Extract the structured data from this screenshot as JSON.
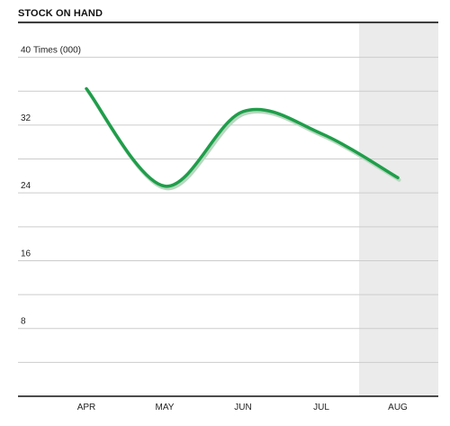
{
  "title": "STOCK ON HAND",
  "chart_data": {
    "type": "line",
    "title": "STOCK ON HAND",
    "ylabel": "Times (000)",
    "xlabel": "",
    "categories": [
      "APR",
      "MAY",
      "JUN",
      "JUL",
      "AUG"
    ],
    "series": [
      {
        "values": [
          36.3,
          24.8,
          33.6,
          31.0,
          25.8
        ]
      }
    ],
    "ylim": [
      0,
      44
    ],
    "yticks": [
      8,
      16,
      24,
      32,
      40
    ],
    "ytick_labels": [
      "8",
      "16",
      "24",
      "32",
      "40"
    ],
    "grid": true,
    "highlight_category": "AUG",
    "colors": {
      "line": "#1f9e4a",
      "shadow": "#b8d8c0",
      "grid": "#cccccc",
      "highlight": "#ebebeb",
      "axis": "#111111"
    }
  }
}
